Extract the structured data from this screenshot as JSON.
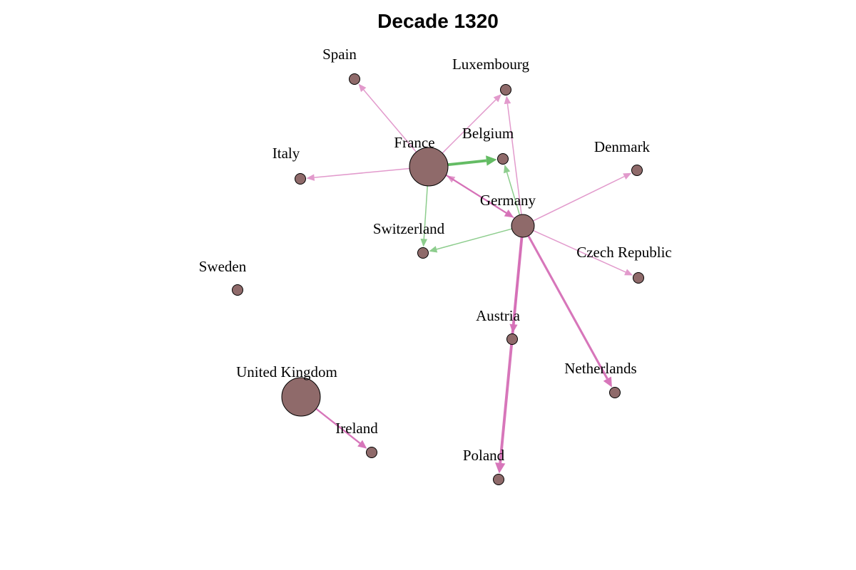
{
  "title": "Decade 1320",
  "colors": {
    "node_fill": "#8f6a6a",
    "node_stroke": "#000000",
    "edge_pink": "#d56fb6",
    "edge_green": "#5cb85c"
  },
  "nodes": [
    {
      "id": "France",
      "label": "France",
      "size": "large"
    },
    {
      "id": "Germany",
      "label": "Germany",
      "size": "medium"
    },
    {
      "id": "United Kingdom",
      "label": "United Kingdom",
      "size": "large"
    },
    {
      "id": "Spain",
      "label": "Spain",
      "size": "small"
    },
    {
      "id": "Luxembourg",
      "label": "Luxembourg",
      "size": "small"
    },
    {
      "id": "Belgium",
      "label": "Belgium",
      "size": "small"
    },
    {
      "id": "Denmark",
      "label": "Denmark",
      "size": "small"
    },
    {
      "id": "Italy",
      "label": "Italy",
      "size": "small"
    },
    {
      "id": "Switzerland",
      "label": "Switzerland",
      "size": "small"
    },
    {
      "id": "Czech Republic",
      "label": "Czech Republic",
      "size": "small"
    },
    {
      "id": "Sweden",
      "label": "Sweden",
      "size": "small"
    },
    {
      "id": "Austria",
      "label": "Austria",
      "size": "small"
    },
    {
      "id": "Netherlands",
      "label": "Netherlands",
      "size": "small"
    },
    {
      "id": "Ireland",
      "label": "Ireland",
      "size": "small"
    },
    {
      "id": "Poland",
      "label": "Poland",
      "size": "small"
    }
  ],
  "edges": [
    {
      "from": "France",
      "to": "Spain",
      "color": "pink",
      "weight": 1
    },
    {
      "from": "France",
      "to": "Luxembourg",
      "color": "pink",
      "weight": 1
    },
    {
      "from": "France",
      "to": "Italy",
      "color": "pink",
      "weight": 1
    },
    {
      "from": "France",
      "to": "Belgium",
      "color": "green",
      "weight": 4
    },
    {
      "from": "France",
      "to": "Switzerland",
      "color": "green",
      "weight": 1
    },
    {
      "from": "France",
      "to": "Germany",
      "color": "pink",
      "weight": 2
    },
    {
      "from": "Germany",
      "to": "France",
      "color": "pink",
      "weight": 1
    },
    {
      "from": "Germany",
      "to": "Luxembourg",
      "color": "pink",
      "weight": 1
    },
    {
      "from": "Germany",
      "to": "Belgium",
      "color": "green",
      "weight": 1
    },
    {
      "from": "Germany",
      "to": "Denmark",
      "color": "pink",
      "weight": 1
    },
    {
      "from": "Germany",
      "to": "Switzerland",
      "color": "green",
      "weight": 1
    },
    {
      "from": "Germany",
      "to": "Czech Republic",
      "color": "pink",
      "weight": 1
    },
    {
      "from": "Germany",
      "to": "Austria",
      "color": "pink",
      "weight": 2
    },
    {
      "from": "Germany",
      "to": "Netherlands",
      "color": "pink",
      "weight": 3
    },
    {
      "from": "Germany",
      "to": "Poland",
      "color": "pink",
      "weight": 4
    },
    {
      "from": "United Kingdom",
      "to": "Ireland",
      "color": "pink",
      "weight": 2
    }
  ]
}
